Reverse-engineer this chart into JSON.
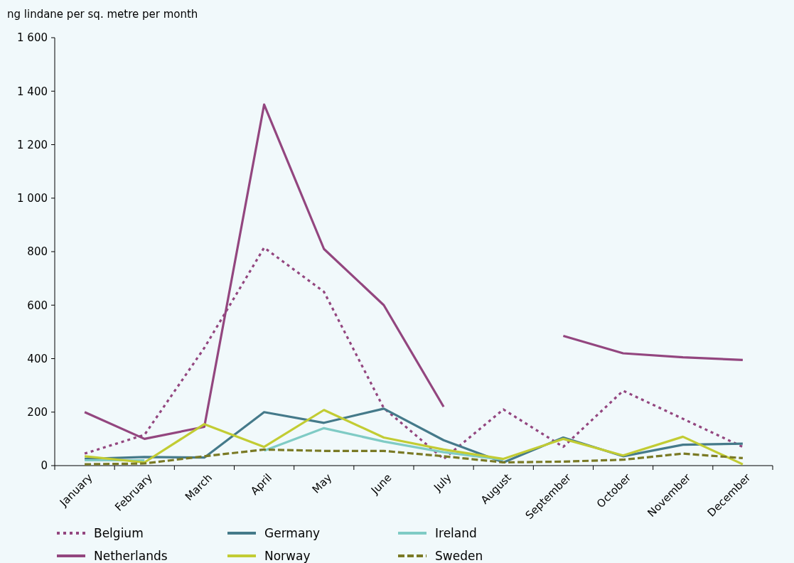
{
  "chart_data": {
    "type": "line",
    "ylabel": "ng lindane per sq. metre per month",
    "categories": [
      "January",
      "February",
      "March",
      "April",
      "May",
      "June",
      "July",
      "August",
      "September",
      "October",
      "November",
      "December"
    ],
    "ylim": [
      0,
      1600
    ],
    "yticks": [
      0,
      200,
      400,
      600,
      800,
      {
        "value": 1000,
        "label": "1 000"
      },
      {
        "value": 1200,
        "label": "1 200"
      },
      {
        "value": 1400,
        "label": "1 400"
      },
      {
        "value": 1600,
        "label": "1 600"
      }
    ],
    "grid": false,
    "legend": "bottom",
    "marker": "none",
    "series": [
      {
        "name": "Belgium",
        "color": "#93467f",
        "line_style": "dotted",
        "values": [
          45,
          115,
          440,
          815,
          650,
          215,
          25,
          210,
          70,
          280,
          175,
          70
        ]
      },
      {
        "name": "Germany",
        "color": "#457a8a",
        "line_style": "solid",
        "values": [
          25,
          32,
          30,
          200,
          160,
          213,
          95,
          12,
          105,
          35,
          78,
          82
        ]
      },
      {
        "name": "Ireland",
        "color": "#7fcbc5",
        "line_style": "solid",
        "values": [
          20,
          20,
          null,
          56,
          140,
          90,
          50,
          22,
          null,
          null,
          null,
          null
        ]
      },
      {
        "name": "Netherlands",
        "color": "#93467f",
        "line_style": "solid",
        "values": [
          200,
          100,
          145,
          1350,
          810,
          600,
          220,
          null,
          485,
          420,
          405,
          395
        ]
      },
      {
        "name": "Norway",
        "color": "#c2cc33",
        "line_style": "solid",
        "values": [
          35,
          12,
          155,
          70,
          208,
          105,
          60,
          25,
          100,
          38,
          108,
          5
        ]
      },
      {
        "name": "Sweden",
        "color": "#7a7a25",
        "line_style": "dashed",
        "values": [
          5,
          8,
          35,
          60,
          55,
          55,
          35,
          12,
          15,
          22,
          45,
          28
        ]
      }
    ]
  }
}
